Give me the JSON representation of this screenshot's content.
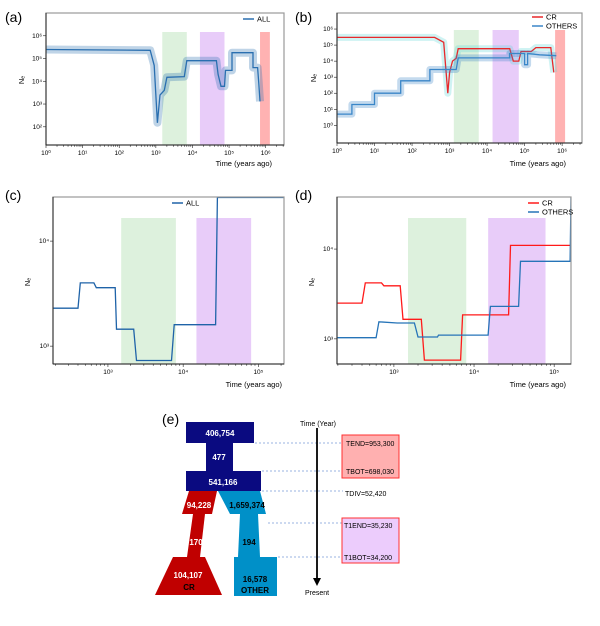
{
  "chart_data": [
    {
      "panel_label": "(a)",
      "type": "line",
      "xscale": "log",
      "yscale": "log",
      "xlabel": "Time (years ago)",
      "ylabel": "Nₑ",
      "xticks": [
        {
          "v": 1,
          "label": "10⁰"
        },
        {
          "v": 10,
          "label": "10¹"
        },
        {
          "v": 100,
          "label": "10²"
        },
        {
          "v": 1000,
          "label": "10³"
        },
        {
          "v": 10000,
          "label": "10⁴"
        },
        {
          "v": 100000,
          "label": "10⁵"
        },
        {
          "v": 1000000,
          "label": "10⁶"
        }
      ],
      "yticks": [
        {
          "v": 100,
          "label": "10²"
        },
        {
          "v": 1000,
          "label": "10³"
        },
        {
          "v": 10000,
          "label": "10⁴"
        },
        {
          "v": 100000,
          "label": "10⁵"
        },
        {
          "v": 1000000,
          "label": "10⁶"
        }
      ],
      "bands": [
        {
          "from": 1500,
          "to": 7000,
          "color": "#d9efd9"
        },
        {
          "from": 16000,
          "to": 75000,
          "color": "#e6c6f8"
        },
        {
          "from": 700000,
          "to": 1300000,
          "color": "#ffaaaa"
        }
      ],
      "series": [
        {
          "name": "ALL",
          "color": "#2a6fb0",
          "ci": true,
          "points": [
            [
              1,
              250000
            ],
            [
              700,
              230000
            ],
            [
              900,
              50000
            ],
            [
              1100,
              150
            ],
            [
              1300,
              2500
            ],
            [
              1700,
              4000
            ],
            [
              2000,
              15000
            ],
            [
              6000,
              16000
            ],
            [
              7000,
              80000
            ],
            [
              45000,
              80000
            ],
            [
              50000,
              20000
            ],
            [
              60000,
              6000
            ],
            [
              75000,
              6000
            ],
            [
              80000,
              30000
            ],
            [
              120000,
              30000
            ],
            [
              120000,
              180000
            ],
            [
              450000,
              180000
            ],
            [
              450000,
              40000
            ],
            [
              600000,
              40000
            ],
            [
              650000,
              8000
            ],
            [
              700000,
              1300
            ]
          ]
        }
      ]
    },
    {
      "panel_label": "(b)",
      "type": "line",
      "xscale": "log",
      "yscale": "log",
      "xlabel": "Time (years ago)",
      "ylabel": "Nₑ",
      "xticks": [
        {
          "v": 1,
          "label": "10⁰"
        },
        {
          "v": 10,
          "label": "10¹"
        },
        {
          "v": 100,
          "label": "10²"
        },
        {
          "v": 1000,
          "label": "10³"
        },
        {
          "v": 10000,
          "label": "10⁴"
        },
        {
          "v": 100000,
          "label": "10⁵"
        },
        {
          "v": 1000000,
          "label": "10⁶"
        }
      ],
      "yticks": [
        {
          "v": 1,
          "label": "10⁰"
        },
        {
          "v": 10,
          "label": "10¹"
        },
        {
          "v": 100,
          "label": "10²"
        },
        {
          "v": 1000,
          "label": "10³"
        },
        {
          "v": 10000,
          "label": "10⁴"
        },
        {
          "v": 100000,
          "label": "10⁵"
        },
        {
          "v": 1000000,
          "label": "10⁶"
        }
      ],
      "bands": [
        {
          "from": 1300,
          "to": 6000,
          "color": "#d9efd9"
        },
        {
          "from": 14000,
          "to": 70000,
          "color": "#e6c6f8"
        },
        {
          "from": 650000,
          "to": 1200000,
          "color": "#ffaaaa"
        }
      ],
      "series": [
        {
          "name": "CR",
          "color": "#e8282b",
          "ci": true,
          "ci_color": "#5fd8d8",
          "points": [
            [
              1,
              300000
            ],
            [
              400,
              300000
            ],
            [
              700,
              150000
            ],
            [
              900,
              100
            ],
            [
              1000,
              2000
            ],
            [
              1200,
              10000
            ],
            [
              1500,
              15000
            ],
            [
              1700,
              60000
            ],
            [
              40000,
              60000
            ],
            [
              50000,
              10000
            ],
            [
              70000,
              10000
            ],
            [
              80000,
              40000
            ],
            [
              150000,
              40000
            ],
            [
              200000,
              70000
            ],
            [
              500000,
              70000
            ],
            [
              550000,
              10000
            ],
            [
              600000,
              2000
            ]
          ]
        },
        {
          "name": "OTHERS",
          "color": "#3a86c8",
          "ci": true,
          "points": [
            [
              1,
              5
            ],
            [
              2.5,
              5
            ],
            [
              2.5,
              20
            ],
            [
              10,
              20
            ],
            [
              10,
              100
            ],
            [
              50,
              100
            ],
            [
              50,
              600
            ],
            [
              300,
              600
            ],
            [
              300,
              3000
            ],
            [
              1500,
              3000
            ],
            [
              1700,
              16000
            ],
            [
              40000,
              16000
            ],
            [
              40000,
              30000
            ],
            [
              100000,
              30000
            ],
            [
              100000,
              6000
            ],
            [
              120000,
              6000
            ],
            [
              120000,
              30000
            ],
            [
              250000,
              25000
            ],
            [
              700000,
              22000
            ]
          ]
        }
      ]
    },
    {
      "panel_label": "(c)",
      "type": "line",
      "xscale": "log",
      "yscale": "log",
      "xlabel": "Time (years ago)",
      "ylabel": "Nₑ",
      "xticks": [
        {
          "v": 1000,
          "label": "10³"
        },
        {
          "v": 10000,
          "label": "10⁴"
        },
        {
          "v": 100000,
          "label": "10⁵"
        }
      ],
      "yticks": [
        {
          "v": 1000,
          "label": "10³"
        },
        {
          "v": 10000,
          "label": "10⁴"
        }
      ],
      "bands": [
        {
          "from": 1500,
          "to": 8000,
          "color": "#d9efd9"
        },
        {
          "from": 15000,
          "to": 80000,
          "color": "#e6c6f8"
        }
      ],
      "series": [
        {
          "name": "ALL",
          "color": "#1f63a8",
          "ci": false,
          "points": [
            [
              186,
              2300
            ],
            [
              400,
              2300
            ],
            [
              430,
              4000
            ],
            [
              650,
              4000
            ],
            [
              700,
              3600
            ],
            [
              1250,
              3600
            ],
            [
              1300,
              1450
            ],
            [
              2200,
              1450
            ],
            [
              2400,
              730
            ],
            [
              7000,
              730
            ],
            [
              7600,
              1600
            ],
            [
              27000,
              1600
            ],
            [
              28500,
              26000
            ],
            [
              220000,
              26000
            ]
          ]
        }
      ]
    },
    {
      "panel_label": "(d)",
      "type": "line",
      "xscale": "log",
      "yscale": "log",
      "xlabel": "Time (years ago)",
      "ylabel": "Nₑ",
      "xticks": [
        {
          "v": 1000,
          "label": "10³"
        },
        {
          "v": 10000,
          "label": "10⁴"
        },
        {
          "v": 100000,
          "label": "10⁵"
        }
      ],
      "yticks": [
        {
          "v": 1000,
          "label": "10³"
        },
        {
          "v": 10000,
          "label": "10⁴"
        }
      ],
      "bands": [
        {
          "from": 1500,
          "to": 8000,
          "color": "#d9efd9"
        },
        {
          "from": 15000,
          "to": 78000,
          "color": "#e6c6f8"
        }
      ],
      "series": [
        {
          "name": "CR",
          "color": "#ff1a1a",
          "ci": false,
          "points": [
            [
              195,
              2500
            ],
            [
              400,
              2500
            ],
            [
              440,
              4200
            ],
            [
              700,
              4200
            ],
            [
              750,
              3900
            ],
            [
              1200,
              3900
            ],
            [
              1300,
              1650
            ],
            [
              2200,
              1650
            ],
            [
              2400,
              580
            ],
            [
              6800,
              580
            ],
            [
              7200,
              1850
            ],
            [
              27000,
              1850
            ],
            [
              28500,
              11000
            ],
            [
              162000,
              11000
            ]
          ]
        },
        {
          "name": "OTHERS",
          "color": "#2674b8",
          "ci": false,
          "points": [
            [
              195,
              1030
            ],
            [
              600,
              1030
            ],
            [
              650,
              1550
            ],
            [
              1100,
              1500
            ],
            [
              1800,
              1500
            ],
            [
              2000,
              1050
            ],
            [
              3500,
              1050
            ],
            [
              3600,
              1100
            ],
            [
              15000,
              1100
            ],
            [
              16000,
              2300
            ],
            [
              36000,
              2300
            ],
            [
              38000,
              7300
            ],
            [
              158000,
              7300
            ],
            [
              162000,
              38000
            ]
          ]
        }
      ]
    }
  ],
  "diagram": {
    "panel_label": "(e)",
    "ancestral": {
      "top": "406,754",
      "bottleneck": "477",
      "pre_split": "541,166",
      "color": "#0a0a80"
    },
    "cr": {
      "upper": "94,228",
      "bottleneck": "170",
      "current": "104,107",
      "name": "CR",
      "color": "#c00000"
    },
    "other": {
      "upper": "1,659,374",
      "bottleneck": "194",
      "current": "16,578",
      "name": "OTHER",
      "color": "#0090c8"
    },
    "time_axis": {
      "title": "Time (Year)",
      "end": "Present"
    },
    "events": {
      "tend": "TEND=953,300",
      "tbot": "TBOT=698,030",
      "tdiv": "TDIV=52,420",
      "t1end": "T1END=35,230",
      "t1bot": "T1BOT=34,200"
    },
    "box_colors": {
      "red": "#ffb0b0",
      "red_border": "#ff3030",
      "purple": "#ecccfc",
      "purple_border": "#ff3030"
    }
  }
}
